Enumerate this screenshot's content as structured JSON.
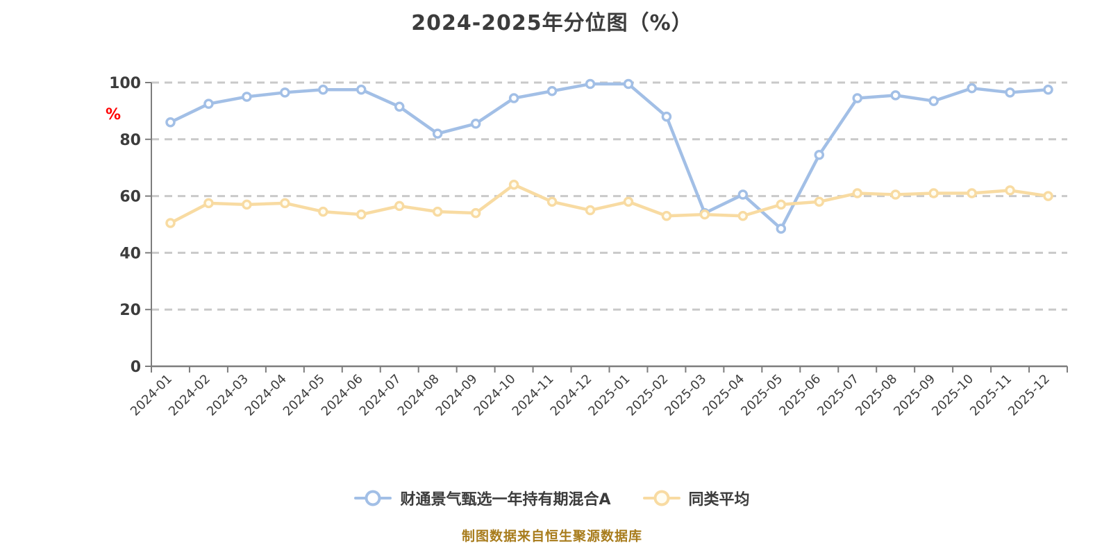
{
  "page": {
    "background": "#ffffff"
  },
  "footer": {
    "caption": "制图数据来自恒生聚源数据库",
    "caption_color": "#a87c1c"
  },
  "chart_data": {
    "type": "line",
    "title": "2024-2025年分位图（%）",
    "title_color": "#3c3c3c",
    "xlabel": "",
    "ylabel": "%",
    "ylabel_color": "#ff0000",
    "ylim": [
      0,
      100
    ],
    "yticks": [
      0,
      20,
      40,
      60,
      80,
      100
    ],
    "grid": "horizontal dashed lines at 20,40,60,80,100",
    "grid_color": "#c9c9c9",
    "axis_color": "#7d7d7d",
    "tick_label_color": "#3c3c3c",
    "legend_position": "bottom-center",
    "categories": [
      "2024-01",
      "2024-02",
      "2024-03",
      "2024-04",
      "2024-05",
      "2024-06",
      "2024-07",
      "2024-08",
      "2024-09",
      "2024-10",
      "2024-11",
      "2024-12",
      "2025-01",
      "2025-02",
      "2025-03",
      "2025-04",
      "2025-05",
      "2025-06",
      "2025-07",
      "2025-08",
      "2025-09",
      "2025-10",
      "2025-11",
      "2025-12"
    ],
    "series": [
      {
        "name": "财通景气甄选一年持有期混合A",
        "color": "#a2bfe6",
        "marker_fill": "#ffffff",
        "values": [
          86,
          92.5,
          95,
          96.5,
          97.5,
          97.5,
          91.5,
          82,
          85.5,
          94.5,
          97,
          99.5,
          99.5,
          88,
          54,
          60.5,
          48.5,
          74.5,
          94.5,
          95.5,
          93.5,
          98,
          96.5,
          97.5
        ]
      },
      {
        "name": "同类平均",
        "color": "#f8dba2",
        "marker_fill": "#fffdf2",
        "values": [
          50.5,
          57.5,
          57,
          57.5,
          54.5,
          53.5,
          56.5,
          54.5,
          54,
          64,
          58,
          55,
          58,
          53,
          53.5,
          53,
          57,
          58,
          61,
          60.5,
          61,
          61,
          62,
          60
        ]
      }
    ]
  }
}
